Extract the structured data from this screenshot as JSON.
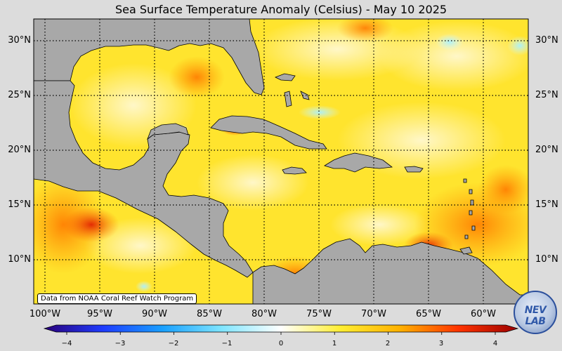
{
  "title": "Sea Surface Temperature Anomaly (Celsius) - May 10 2025",
  "attribution": "Data from NOAA Coral Reef Watch Program",
  "lat_labels": [
    "30°N",
    "25°N",
    "20°N",
    "15°N",
    "10°N"
  ],
  "lon_labels": [
    "100°W",
    "95°W",
    "90°W",
    "85°W",
    "80°W",
    "75°W",
    "70°W",
    "65°W",
    "60°W"
  ],
  "colorbar": {
    "min": -4,
    "max": 4,
    "ticks": [
      "−4",
      "−3",
      "−2",
      "−1",
      "0",
      "1",
      "2",
      "3",
      "4"
    ],
    "colors": [
      "#2a007a",
      "#1e3cff",
      "#19a0ff",
      "#7fe5ff",
      "#ffffff",
      "#ffee33",
      "#ffb200",
      "#ff3300",
      "#9c0000"
    ]
  },
  "logo": {
    "text": "NEV LAB"
  },
  "colors": {
    "land": "#a8a8a8",
    "ocean_base": "#ffe42e",
    "border": "#000000"
  }
}
